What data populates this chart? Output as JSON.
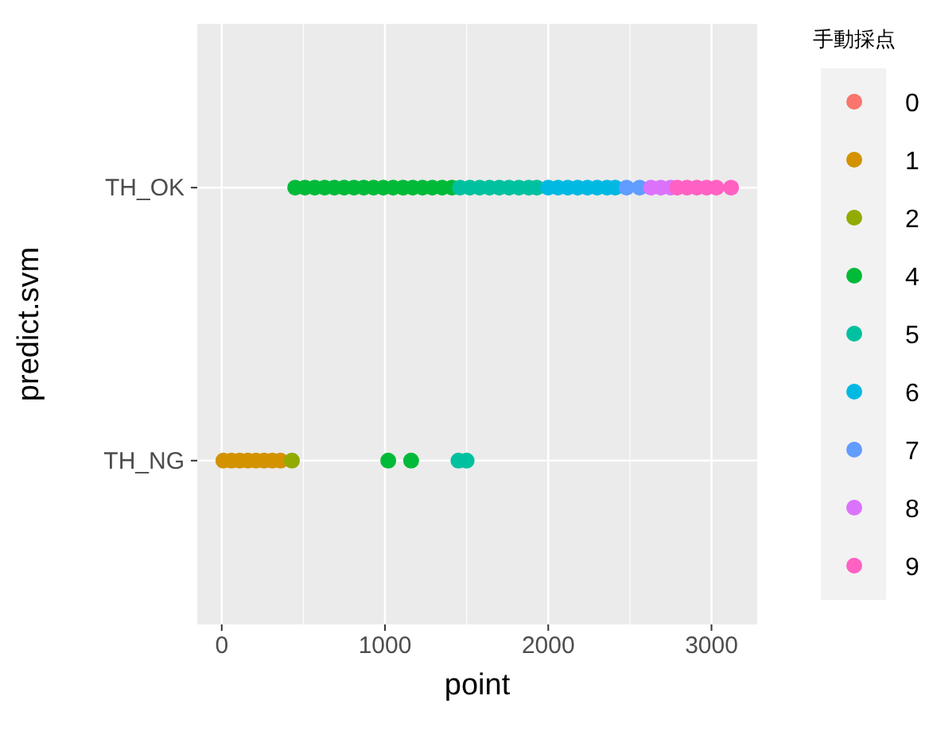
{
  "chart_data": {
    "type": "scatter",
    "orientation": "horizontal",
    "xlabel": "point",
    "ylabel": "predict.svm",
    "legend_title": "手動採点",
    "legend": "right",
    "grid": true,
    "marker": "circle",
    "categories": [
      "TH_OK",
      "TH_NG"
    ],
    "xlim": [
      -150,
      3280
    ],
    "xticks": [
      0,
      1000,
      2000,
      3000
    ],
    "series": [
      {
        "name": "0",
        "color": "#f8766d",
        "x": [
          "TH_OK",
          "TH_NG"
        ],
        "values": [
          null,
          null
        ]
      },
      {
        "name": "1",
        "color": "#d39200",
        "x": [
          "TH_NG",
          "TH_NG",
          "TH_NG",
          "TH_NG",
          "TH_NG",
          "TH_NG",
          "TH_NG",
          "TH_NG"
        ],
        "values": [
          10,
          60,
          110,
          160,
          210,
          260,
          310,
          360
        ]
      },
      {
        "name": "2",
        "color": "#93aa00",
        "x": [
          "TH_NG"
        ],
        "values": [
          430
        ]
      },
      {
        "name": "4",
        "color": "#00ba38",
        "x": [
          "TH_NG",
          "TH_NG",
          "TH_OK",
          "TH_OK",
          "TH_OK",
          "TH_OK",
          "TH_OK",
          "TH_OK",
          "TH_OK",
          "TH_OK",
          "TH_OK",
          "TH_OK",
          "TH_OK",
          "TH_OK",
          "TH_OK",
          "TH_OK",
          "TH_OK",
          "TH_OK",
          "TH_OK"
        ],
        "values": [
          1020,
          1160,
          450,
          510,
          570,
          630,
          690,
          750,
          810,
          870,
          930,
          990,
          1050,
          1110,
          1170,
          1230,
          1290,
          1350,
          1410
        ]
      },
      {
        "name": "5",
        "color": "#00c19f",
        "x": [
          "TH_NG",
          "TH_NG",
          "TH_OK",
          "TH_OK",
          "TH_OK",
          "TH_OK",
          "TH_OK",
          "TH_OK",
          "TH_OK",
          "TH_OK",
          "TH_OK"
        ],
        "values": [
          1450,
          1500,
          1460,
          1520,
          1580,
          1640,
          1700,
          1760,
          1820,
          1880,
          1930
        ]
      },
      {
        "name": "6",
        "color": "#00b9e3",
        "x": [
          "TH_OK",
          "TH_OK",
          "TH_OK",
          "TH_OK",
          "TH_OK",
          "TH_OK",
          "TH_OK",
          "TH_OK"
        ],
        "values": [
          2000,
          2060,
          2120,
          2180,
          2240,
          2300,
          2360,
          2410
        ]
      },
      {
        "name": "7",
        "color": "#619cff",
        "x": [
          "TH_OK",
          "TH_OK"
        ],
        "values": [
          2480,
          2560
        ]
      },
      {
        "name": "8",
        "color": "#db72fb",
        "x": [
          "TH_OK",
          "TH_OK",
          "TH_OK"
        ],
        "values": [
          2630,
          2690,
          2750
        ]
      },
      {
        "name": "9",
        "color": "#ff61c3",
        "x": [
          "TH_OK",
          "TH_OK",
          "TH_OK",
          "TH_OK",
          "TH_OK",
          "TH_OK"
        ],
        "values": [
          2790,
          2850,
          2910,
          2970,
          3030,
          3120
        ]
      }
    ]
  }
}
